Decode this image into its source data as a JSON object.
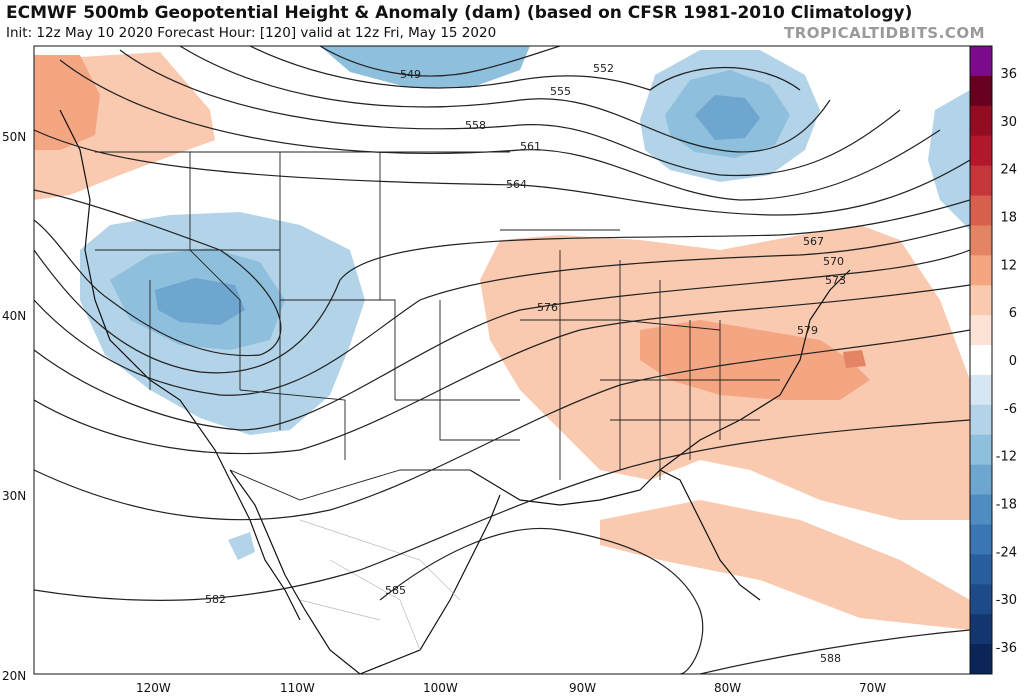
{
  "title": "ECMWF 500mb Geopotential Height & Anomaly (dam) (based on CFSR 1981-2010 Climatology)",
  "subtitle": "Init: 12z May 10 2020   Forecast Hour: [120]   valid at 12z Fri, May 15 2020",
  "source": "TROPICALTIDBITS.COM",
  "map": {
    "latitude_labels": [
      "50N",
      "40N",
      "30N",
      "20N"
    ],
    "longitude_labels": [
      "120W",
      "110W",
      "100W",
      "90W",
      "80W",
      "70W"
    ],
    "contour_labels": [
      "549",
      "552",
      "555",
      "558",
      "561",
      "564",
      "567",
      "570",
      "573",
      "576",
      "579",
      "582",
      "585",
      "588"
    ],
    "features": [
      {
        "name": "trough-western-us",
        "anomaly": "negative",
        "color": "#6fa6cf"
      },
      {
        "name": "trough-great-lakes-quebec",
        "anomaly": "negative",
        "color": "#6fa6cf"
      },
      {
        "name": "ridge-eastern-us",
        "anomaly": "positive",
        "color": "#f4a582"
      },
      {
        "name": "ridge-pacific-northwest",
        "anomaly": "positive",
        "color": "#f4a582"
      }
    ]
  },
  "colorbar": {
    "ticks": [
      "36",
      "30",
      "24",
      "18",
      "12",
      "6",
      "0",
      "-6",
      "-12",
      "-18",
      "-24",
      "-30",
      "-36"
    ],
    "colors": [
      "#7b0b8b",
      "#67001f",
      "#930c21",
      "#b2182b",
      "#c6363b",
      "#d6604d",
      "#e38465",
      "#f4a582",
      "#f9c9b0",
      "#fde3d6",
      "#ffffff",
      "#d6e6f2",
      "#b3d3e8",
      "#8ebfdd",
      "#6fa6cf",
      "#4f8cc1",
      "#3a76b3",
      "#2a5f9f",
      "#1e4a87",
      "#143670",
      "#0b2557"
    ]
  }
}
